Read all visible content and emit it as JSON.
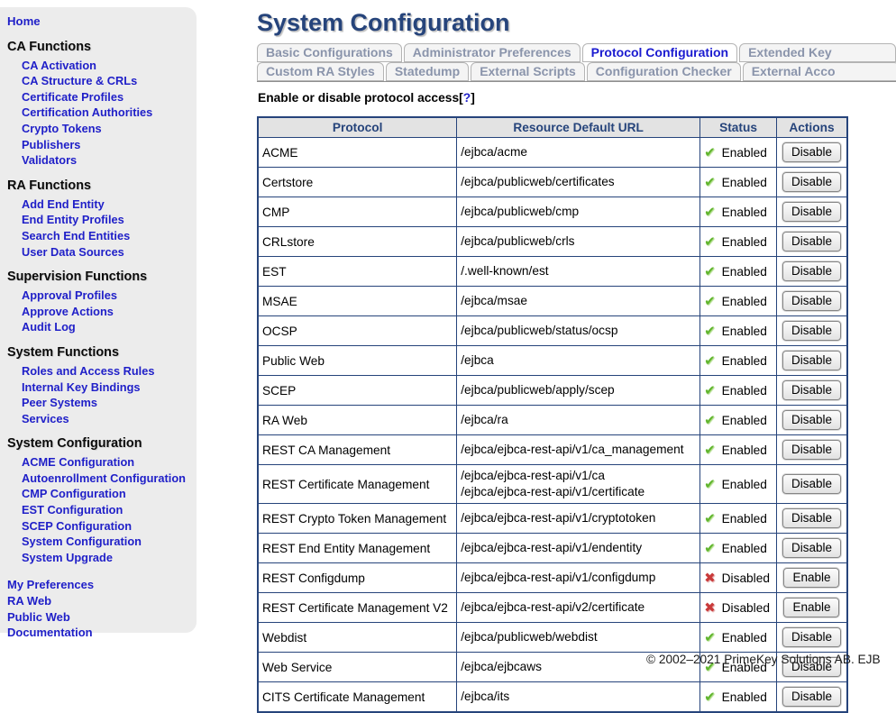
{
  "colors": {
    "accent_navy": "#26447b",
    "link_blue": "#1f1fc8",
    "active_tab_blue": "#1b1bd0",
    "inactive_tab_text": "#8a94ab",
    "enabled_green": "#61b52e",
    "disabled_red": "#c93a3a",
    "sidebar_bg": "#ececec",
    "table_header_bg": "#e3e3e3"
  },
  "icons": {
    "check_glyph": "✔",
    "cross_glyph": "✖"
  },
  "sidebar": {
    "home": "Home",
    "sections": [
      {
        "title": "CA Functions",
        "items": [
          "CA Activation",
          "CA Structure & CRLs",
          "Certificate Profiles",
          "Certification Authorities",
          "Crypto Tokens",
          "Publishers",
          "Validators"
        ]
      },
      {
        "title": "RA Functions",
        "items": [
          "Add End Entity",
          "End Entity Profiles",
          "Search End Entities",
          "User Data Sources"
        ]
      },
      {
        "title": "Supervision Functions",
        "items": [
          "Approval Profiles",
          "Approve Actions",
          "Audit Log"
        ]
      },
      {
        "title": "System Functions",
        "items": [
          "Roles and Access Rules",
          "Internal Key Bindings",
          "Peer Systems",
          "Services"
        ]
      },
      {
        "title": "System Configuration",
        "items": [
          "ACME Configuration",
          "Autoenrollment Configuration",
          "CMP Configuration",
          "EST Configuration",
          "SCEP Configuration",
          "System Configuration",
          "System Upgrade"
        ]
      }
    ],
    "footer_links": [
      "My Preferences",
      "RA Web",
      "Public Web",
      "Documentation"
    ]
  },
  "main": {
    "title": "System Configuration",
    "tabs_row1": [
      {
        "label": "Basic Configurations",
        "active": false,
        "clipped": false
      },
      {
        "label": "Administrator Preferences",
        "active": false,
        "clipped": false
      },
      {
        "label": "Protocol Configuration",
        "active": true,
        "clipped": false
      },
      {
        "label": "Extended Key",
        "active": false,
        "clipped": true
      }
    ],
    "tabs_row2": [
      {
        "label": "Custom RA Styles",
        "active": false,
        "clipped": false
      },
      {
        "label": "Statedump",
        "active": false,
        "clipped": false
      },
      {
        "label": "External Scripts",
        "active": false,
        "clipped": false
      },
      {
        "label": "Configuration Checker",
        "active": false,
        "clipped": false
      },
      {
        "label": "External Acco",
        "active": false,
        "clipped": true
      }
    ],
    "heading": {
      "text": "Enable or disable protocol access",
      "bracket_open": "[",
      "help": "?",
      "bracket_close": "]"
    },
    "table": {
      "headers": [
        "Protocol",
        "Resource Default URL",
        "Status",
        "Actions"
      ],
      "rows": [
        {
          "protocol": "ACME",
          "urls": [
            "/ejbca/acme"
          ],
          "status": "Enabled",
          "action": "Disable"
        },
        {
          "protocol": "Certstore",
          "urls": [
            "/ejbca/publicweb/certificates"
          ],
          "status": "Enabled",
          "action": "Disable"
        },
        {
          "protocol": "CMP",
          "urls": [
            "/ejbca/publicweb/cmp"
          ],
          "status": "Enabled",
          "action": "Disable"
        },
        {
          "protocol": "CRLstore",
          "urls": [
            "/ejbca/publicweb/crls"
          ],
          "status": "Enabled",
          "action": "Disable"
        },
        {
          "protocol": "EST",
          "urls": [
            "/.well-known/est"
          ],
          "status": "Enabled",
          "action": "Disable"
        },
        {
          "protocol": "MSAE",
          "urls": [
            "/ejbca/msae"
          ],
          "status": "Enabled",
          "action": "Disable"
        },
        {
          "protocol": "OCSP",
          "urls": [
            "/ejbca/publicweb/status/ocsp"
          ],
          "status": "Enabled",
          "action": "Disable"
        },
        {
          "protocol": "Public Web",
          "urls": [
            "/ejbca"
          ],
          "status": "Enabled",
          "action": "Disable"
        },
        {
          "protocol": "SCEP",
          "urls": [
            "/ejbca/publicweb/apply/scep"
          ],
          "status": "Enabled",
          "action": "Disable"
        },
        {
          "protocol": "RA Web",
          "urls": [
            "/ejbca/ra"
          ],
          "status": "Enabled",
          "action": "Disable"
        },
        {
          "protocol": "REST CA Management",
          "urls": [
            "/ejbca/ejbca-rest-api/v1/ca_management"
          ],
          "status": "Enabled",
          "action": "Disable"
        },
        {
          "protocol": "REST Certificate Management",
          "urls": [
            "/ejbca/ejbca-rest-api/v1/ca",
            "/ejbca/ejbca-rest-api/v1/certificate"
          ],
          "status": "Enabled",
          "action": "Disable"
        },
        {
          "protocol": "REST Crypto Token Management",
          "urls": [
            "/ejbca/ejbca-rest-api/v1/cryptotoken"
          ],
          "status": "Enabled",
          "action": "Disable"
        },
        {
          "protocol": "REST End Entity Management",
          "urls": [
            "/ejbca/ejbca-rest-api/v1/endentity"
          ],
          "status": "Enabled",
          "action": "Disable"
        },
        {
          "protocol": "REST Configdump",
          "urls": [
            "/ejbca/ejbca-rest-api/v1/configdump"
          ],
          "status": "Disabled",
          "action": "Enable"
        },
        {
          "protocol": "REST Certificate Management V2",
          "urls": [
            "/ejbca/ejbca-rest-api/v2/certificate"
          ],
          "status": "Disabled",
          "action": "Enable"
        },
        {
          "protocol": "Webdist",
          "urls": [
            "/ejbca/publicweb/webdist"
          ],
          "status": "Enabled",
          "action": "Disable"
        },
        {
          "protocol": "Web Service",
          "urls": [
            "/ejbca/ejbcaws"
          ],
          "status": "Enabled",
          "action": "Disable"
        },
        {
          "protocol": "CITS Certificate Management",
          "urls": [
            "/ejbca/its"
          ],
          "status": "Enabled",
          "action": "Disable"
        }
      ]
    },
    "footer": "© 2002–2021 PrimeKey Solutions AB. EJB"
  }
}
